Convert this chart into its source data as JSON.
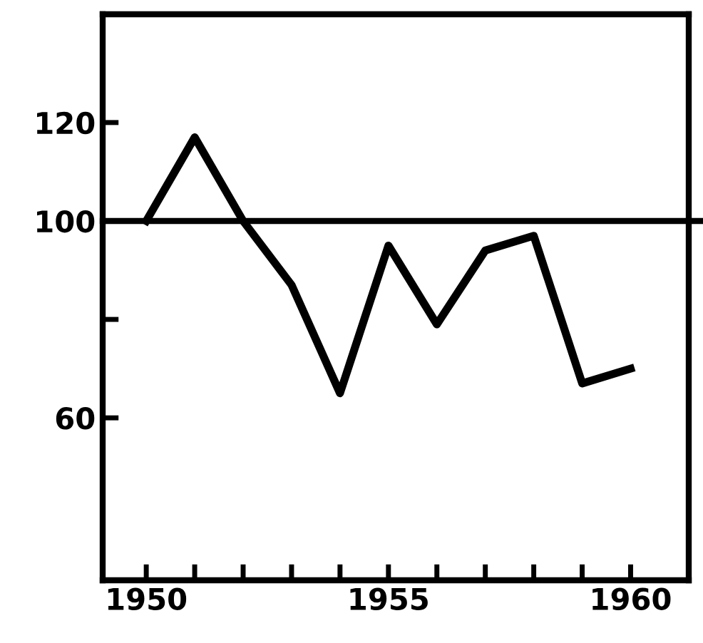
{
  "chart_data": {
    "type": "line",
    "x": [
      1950,
      1951,
      1952,
      1953,
      1954,
      1955,
      1956,
      1957,
      1958,
      1959,
      1960
    ],
    "series": [
      {
        "color": "#000000",
        "values": [
          100,
          117,
          100,
          87,
          65,
          95,
          79,
          94,
          97,
          67,
          70
        ]
      }
    ],
    "xlim": [
      1949.1,
      1961.2
    ],
    "xticks": [
      1950,
      {
        "value": 1951,
        "label": null
      },
      {
        "value": 1952,
        "label": null
      },
      {
        "value": 1953,
        "label": null
      },
      {
        "value": 1954,
        "label": null
      },
      1955,
      {
        "value": 1956,
        "label": null
      },
      {
        "value": 1957,
        "label": null
      },
      {
        "value": 1958,
        "label": null
      },
      {
        "value": 1959,
        "label": null
      },
      1960
    ],
    "ylim": [
      27,
      142
    ],
    "yticks": [
      60,
      {
        "value": 80,
        "label": null
      },
      100,
      120
    ],
    "ref_lines": [
      {
        "axis": "y",
        "value": 100,
        "color": "#000000"
      }
    ],
    "grid": false,
    "legend": false,
    "marker": "none",
    "line_style": "solid"
  }
}
